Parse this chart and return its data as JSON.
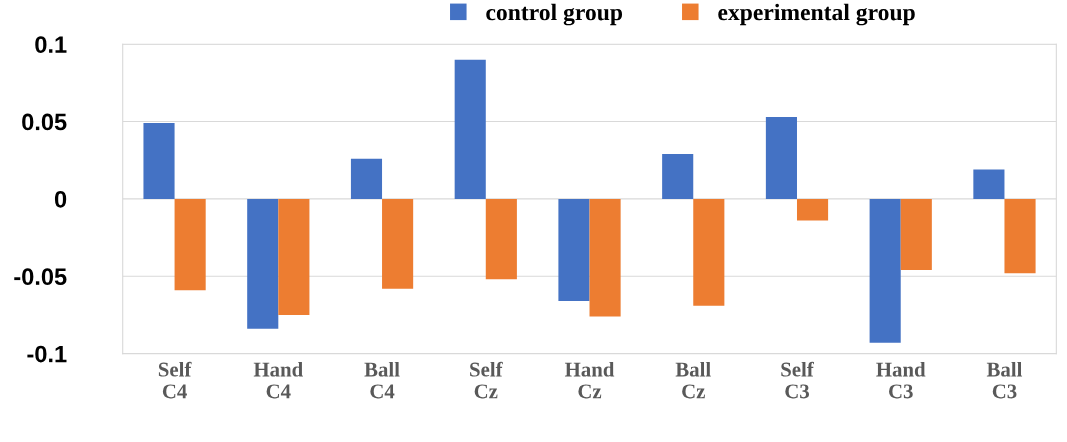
{
  "chart_data": {
    "type": "bar",
    "categories": [
      "Self\nC4",
      "Hand\nC4",
      "Ball\nC4",
      "Self\nCz",
      "Hand\nCz",
      "Ball\nCz",
      "Self\nC3",
      "Hand\nC3",
      "Ball\nC3"
    ],
    "series": [
      {
        "name": "control group",
        "color": "#4472c4",
        "values": [
          0.049,
          -0.084,
          0.026,
          0.09,
          -0.066,
          0.029,
          0.053,
          -0.093,
          0.019
        ]
      },
      {
        "name": "experimental group",
        "color": "#ed7d31",
        "values": [
          -0.059,
          -0.075,
          -0.058,
          -0.052,
          -0.076,
          -0.069,
          -0.014,
          -0.046,
          -0.048
        ]
      }
    ],
    "ylim": [
      -0.1,
      0.1
    ],
    "yticks": [
      -0.1,
      -0.05,
      0,
      0.05,
      0.1
    ],
    "grid": "y",
    "legend": "top"
  }
}
